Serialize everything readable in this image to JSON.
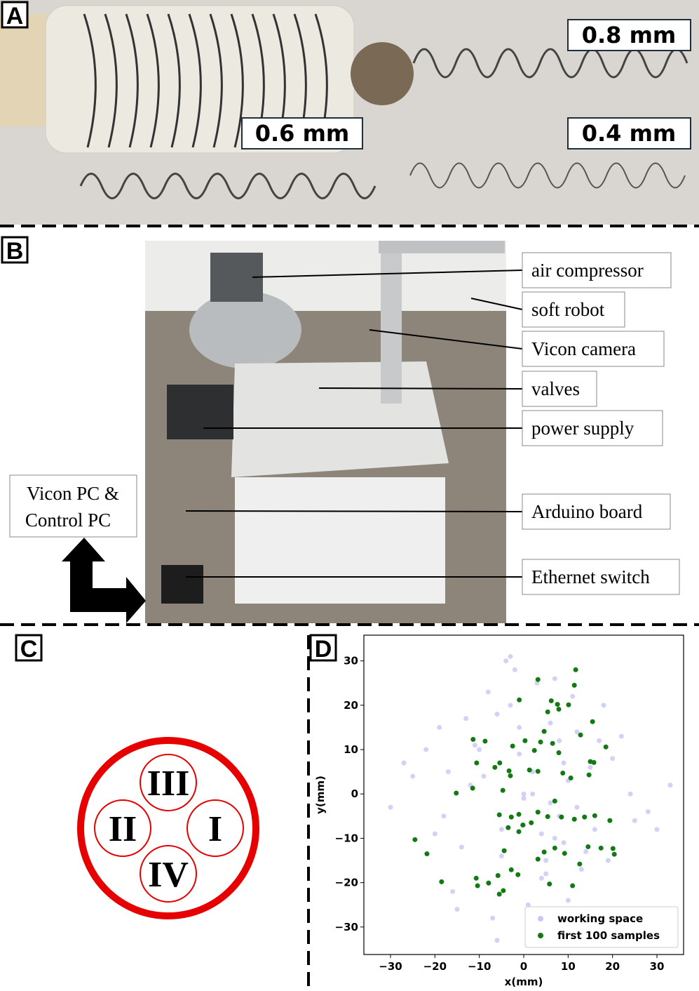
{
  "panels": {
    "a": {
      "label": "A",
      "annotations": [
        "0.8 mm",
        "0.6 mm",
        "0.4 mm"
      ]
    },
    "b": {
      "label": "B",
      "callouts": [
        "air compressor",
        "soft robot",
        "Vicon camera",
        "valves",
        "power supply",
        "Arduino board",
        "Ethernet switch"
      ],
      "pc_label": [
        "Vicon PC &",
        "Control PC"
      ]
    },
    "c": {
      "label": "C",
      "chambers": [
        "III",
        "II",
        "I",
        "IV"
      ]
    },
    "d": {
      "label": "D"
    }
  },
  "chart_data": {
    "type": "scatter",
    "xlabel": "x(mm)",
    "ylabel": "y(mm)",
    "xlim": [
      -36,
      36
    ],
    "ylim": [
      -36.2,
      35.8
    ],
    "xticks": [
      {
        "value": -30,
        "label": "−30"
      },
      {
        "value": -20,
        "label": "−20"
      },
      {
        "value": -10,
        "label": "−10"
      },
      0,
      10,
      20,
      30
    ],
    "yticks": [
      {
        "value": -30,
        "label": "−30"
      },
      {
        "value": -20,
        "label": "−20"
      },
      {
        "value": -10,
        "label": "−10"
      },
      0,
      10,
      20,
      30
    ],
    "legend": "lower right",
    "series": [
      {
        "name": "working space",
        "color": "#4a4ae8",
        "x": [
          2,
          -5,
          8,
          12,
          -10,
          0,
          5,
          -3,
          15,
          -18,
          20,
          -8,
          3,
          7,
          -1,
          10,
          -14,
          6,
          -22,
          25,
          1,
          -6,
          9,
          13,
          -12,
          4,
          -2,
          17,
          -16,
          11,
          -25,
          28,
          -7,
          0,
          6,
          -11,
          14,
          3,
          -4,
          19,
          -20,
          8,
          -9,
          2,
          22,
          -13,
          5,
          -30,
          33,
          10,
          -1,
          -17,
          16,
          7,
          -5,
          24,
          -27,
          12,
          1,
          -8,
          4,
          -15,
          18,
          9,
          -3,
          30,
          -19,
          0,
          11,
          -6
        ],
        "values": [
          5,
          -8,
          12,
          -3,
          10,
          0,
          -15,
          20,
          6,
          -5,
          8,
          -20,
          25,
          -10,
          15,
          3,
          -12,
          -2,
          10,
          -6,
          -25,
          18,
          7,
          -17,
          2,
          -9,
          28,
          12,
          -22,
          22,
          4,
          -4,
          -28,
          -1,
          16,
          11,
          -13,
          -30,
          30,
          -15,
          -9,
          -5,
          4,
          0,
          13,
          17,
          -18,
          -3,
          2,
          -24,
          9,
          5,
          -8,
          26,
          -14,
          0,
          7,
          14,
          -32,
          23,
          -19,
          -26,
          20,
          -11,
          31,
          -8,
          15,
          -7,
          -28,
          -33
        ]
      },
      {
        "name": "first 100 samples",
        "color": "#137a13",
        "x": [
          11.7,
          3.2,
          11.4,
          -1,
          6.2,
          7.6,
          10.1,
          7.9,
          5.4,
          15.5,
          4.6,
          12.8,
          -11.4,
          -8.7,
          0.3,
          3.8,
          6.5,
          -2.5,
          18.5,
          2.4,
          7.9,
          -10.6,
          -5.4,
          15,
          15.8,
          -6.5,
          -3.3,
          1.3,
          3.2,
          8.8,
          -3,
          10.6,
          14.7,
          -11.5,
          -15.2,
          -4.7,
          7,
          -1.1,
          -5.5,
          -2.8,
          3.2,
          5.4,
          8.5,
          11.4,
          13.7,
          16,
          1.7,
          -0.2,
          19.4,
          -1.1,
          -3.5,
          -24.5,
          7,
          14.5,
          17.4,
          20.1,
          20.4,
          -21.8,
          -4.4,
          4.6,
          9.2,
          12.6,
          3.2,
          -2.8,
          -1.3,
          -5.8,
          -10.7,
          -18.5,
          -10.4,
          -7.9,
          5.8,
          11,
          -4.6,
          -5.5
        ],
        "values": [
          28,
          25.8,
          24.5,
          21.2,
          21,
          20.2,
          20.1,
          19.1,
          18.5,
          16.3,
          14.1,
          13.3,
          12.3,
          11.9,
          12,
          11.7,
          11.4,
          10.8,
          10.6,
          9.8,
          9.3,
          7,
          7,
          7.3,
          7.1,
          6,
          5.2,
          5.4,
          5.1,
          4.7,
          4.1,
          3.6,
          4.3,
          1.3,
          0.2,
          0.8,
          -1.6,
          -4.6,
          -4.7,
          -5.2,
          -4.1,
          -5.1,
          -5.2,
          -5.7,
          -5.2,
          -4.9,
          -6.5,
          -7,
          -6,
          -8.5,
          -7.6,
          -10.3,
          -12.2,
          -11.9,
          -12.2,
          -12.3,
          -13.6,
          -13.5,
          -12.8,
          -13.1,
          -13.4,
          -15.8,
          -14.7,
          -17.1,
          -18.2,
          -18.4,
          -19,
          -19.8,
          -20.7,
          -20.1,
          -20.3,
          -20.7,
          -21.8,
          -22.6
        ]
      }
    ]
  }
}
